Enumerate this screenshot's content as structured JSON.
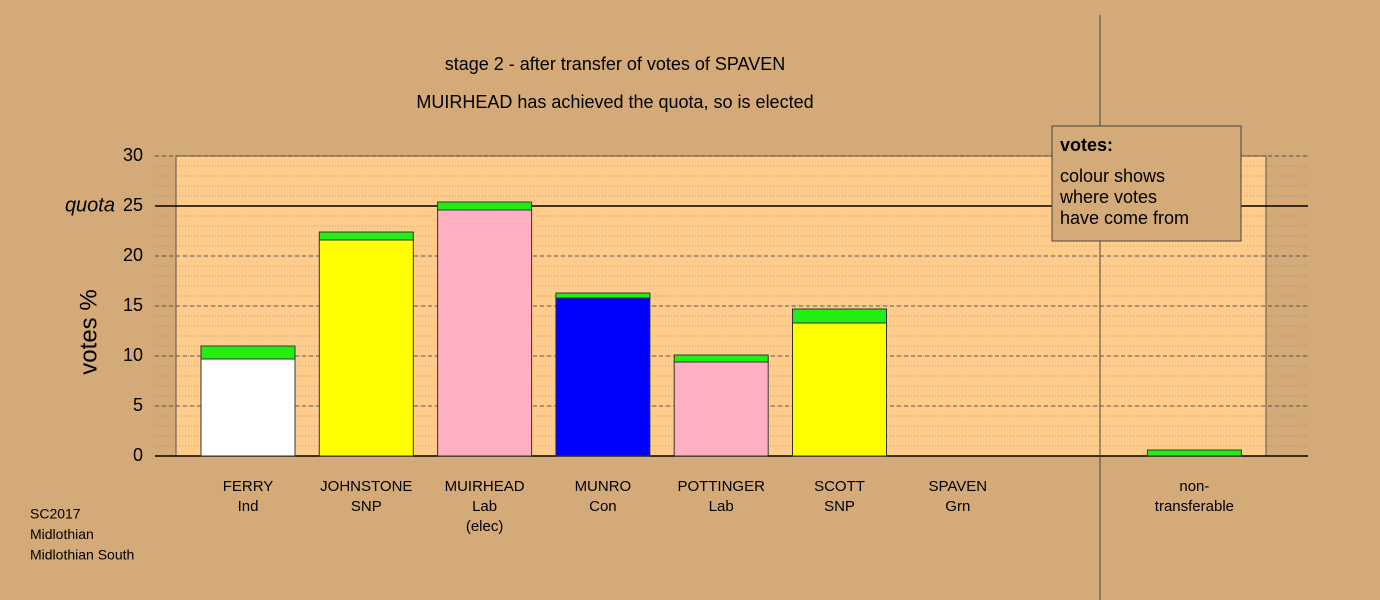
{
  "chart_data": {
    "type": "stacked-bar",
    "title": "stage 2 - after transfer of votes of SPAVEN",
    "subtitle": "MUIRHEAD has achieved the quota, so is elected",
    "ylabel": "votes %",
    "categories": [
      [
        "FERRY",
        "Ind"
      ],
      [
        "JOHNSTONE",
        "SNP"
      ],
      [
        "MUIRHEAD",
        "Lab",
        "(elec)"
      ],
      [
        "MUNRO",
        "Con"
      ],
      [
        "POTTINGER",
        "Lab"
      ],
      [
        "SCOTT",
        "SNP"
      ],
      [
        "SPAVEN",
        "Grn"
      ],
      [
        "non-",
        "transferable"
      ]
    ],
    "series": [
      {
        "colors": [
          "#ffffff",
          "#ffff00",
          "#ffb0c0",
          "#0000ff",
          "#ffb0c0",
          "#ffff00",
          null,
          null
        ],
        "values": [
          9.7,
          21.6,
          24.6,
          15.8,
          9.4,
          13.3,
          0,
          0
        ]
      },
      {
        "color": "#22ee11",
        "values": [
          1.3,
          0.8,
          0.8,
          0.5,
          0.7,
          1.4,
          0,
          0.6
        ]
      }
    ],
    "ylim": [
      0,
      30
    ],
    "yticks": [
      0,
      5,
      10,
      15,
      20,
      25,
      30
    ],
    "yminor_step": 1,
    "grid": true,
    "quota": {
      "value": 25,
      "label": "quota"
    },
    "legend_box": {
      "title": "votes:",
      "lines": [
        "colour shows",
        "where votes",
        "have come from"
      ]
    },
    "footer": [
      "SC2017",
      "Midlothian",
      "Midlothian South"
    ]
  }
}
